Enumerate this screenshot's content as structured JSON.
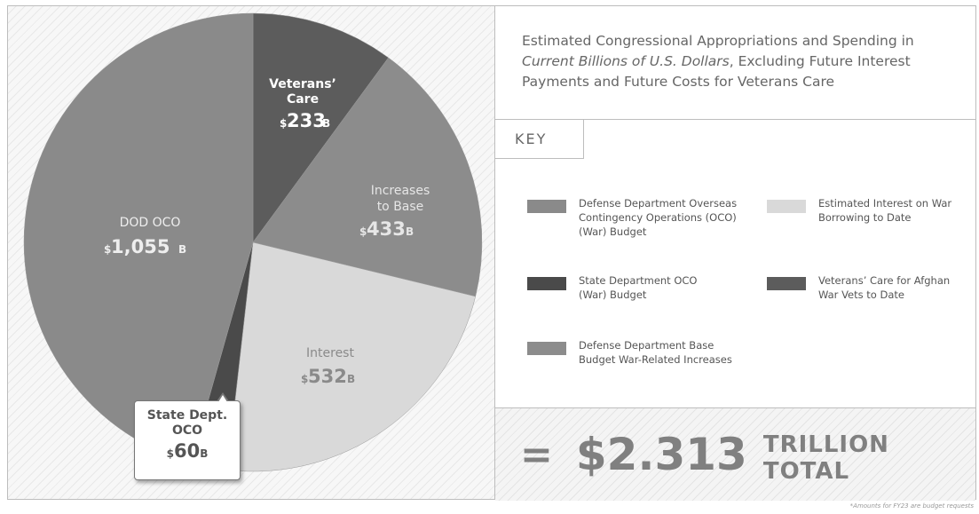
{
  "chart_data": {
    "type": "pie",
    "title": "Estimated Congressional Appropriations and Spending in Current Billions of U.S. Dollars, Excluding Future Interest Payments and Future Costs for Veterans Care",
    "unit": "billions USD",
    "slices": [
      {
        "name": "Veterans’ Care",
        "value": 233,
        "label_value": "233B",
        "color": "#5c5c5c"
      },
      {
        "name": "Increases to Base",
        "value": 433,
        "label_value": "433B",
        "color": "#8c8c8c"
      },
      {
        "name": "Interest",
        "value": 532,
        "label_value": "532B",
        "color": "#d9d9d9"
      },
      {
        "name": "State Dept. OCO",
        "value": 60,
        "label_value": "60B",
        "color": "#4a4a4a"
      },
      {
        "name": "DOD OCO",
        "value": 1055,
        "label_value": "1,055B",
        "color": "#8a8a8a"
      }
    ],
    "total": "$2.313",
    "total_label": "TRILLION TOTAL"
  },
  "title": {
    "line1": "Estimated Congressional Appropriations and Spending in",
    "line2_italic": "Current Billions of U.S. Dollars",
    "line2_rest": ", Excluding Future Interest",
    "line3": "Payments and Future Costs for Veterans Care"
  },
  "labels": {
    "veterans_name_1": "Veterans’",
    "veterans_name_2": "Care",
    "veterans_value": "233",
    "increases_name_1": "Increases",
    "increases_name_2": "to Base",
    "increases_value": "433",
    "interest_name": "Interest",
    "interest_value": "532",
    "dod_name": "DOD OCO",
    "dod_value": "1,055",
    "state_name_1": "State Dept.",
    "state_name_2": "OCO",
    "state_value": "60",
    "dollar": "$",
    "billions_suffix": "B"
  },
  "key": {
    "heading": "KEY",
    "items": [
      {
        "line1": "Defense Department Overseas",
        "line2": "Contingency Operations (OCO)",
        "line3": "(War) Budget",
        "color": "#8a8a8a"
      },
      {
        "line1": "State Department OCO",
        "line2": "(War) Budget",
        "color": "#4a4a4a"
      },
      {
        "line1": "Defense Department Base",
        "line2": "Budget War-Related Increases",
        "color": "#8c8c8c"
      },
      {
        "line1": "Estimated Interest on War",
        "line2": "Borrowing to Date",
        "color": "#d9d9d9"
      },
      {
        "line1": "Veterans’ Care for Afghan",
        "line2": "War Vets to Date",
        "color": "#5c5c5c"
      }
    ]
  },
  "total": {
    "equals": "=",
    "amount": "$2.313",
    "label": "TRILLION TOTAL"
  },
  "footnote": "*Amounts for FY23 are budget requests"
}
